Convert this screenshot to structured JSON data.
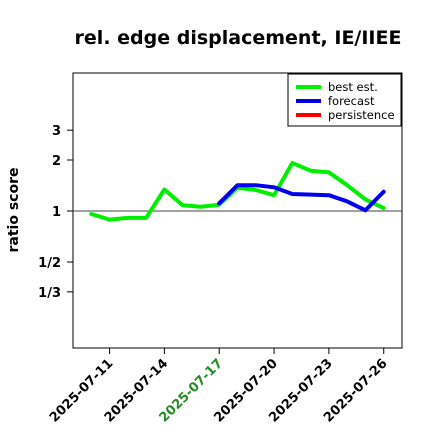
{
  "chart_data": {
    "type": "line",
    "title": "rel. edge displacement, IE/IIEE",
    "ylabel": "ratio score",
    "y_scale": "log",
    "y_ticks": [
      {
        "value": 3,
        "label": "3"
      },
      {
        "value": 2,
        "label": "2"
      },
      {
        "value": 1,
        "label": "1"
      },
      {
        "value": 0.5,
        "label": "1/2"
      },
      {
        "value": 0.3333,
        "label": "1/3"
      }
    ],
    "x_ticks": [
      {
        "date": "2025-07-11",
        "label": "2025-07-11",
        "color": "#000000"
      },
      {
        "date": "2025-07-14",
        "label": "2025-07-14",
        "color": "#000000"
      },
      {
        "date": "2025-07-17",
        "label": "2025-07-17",
        "color": "#228b22"
      },
      {
        "date": "2025-07-20",
        "label": "2025-07-20",
        "color": "#000000"
      },
      {
        "date": "2025-07-23",
        "label": "2025-07-23",
        "color": "#000000"
      },
      {
        "date": "2025-07-26",
        "label": "2025-07-26",
        "color": "#000000"
      }
    ],
    "xlim": [
      "2025-07-09",
      "2025-07-27"
    ],
    "reference_line": 1,
    "legend_position": "top-right",
    "series": [
      {
        "name": "best est.",
        "color": "#00ee00",
        "x": [
          "2025-07-10",
          "2025-07-11",
          "2025-07-12",
          "2025-07-13",
          "2025-07-14",
          "2025-07-15",
          "2025-07-16",
          "2025-07-17",
          "2025-07-18",
          "2025-07-19",
          "2025-07-20",
          "2025-07-21",
          "2025-07-22",
          "2025-07-23",
          "2025-07-24",
          "2025-07-25",
          "2025-07-26"
        ],
        "values": [
          0.96,
          0.89,
          0.91,
          0.91,
          1.34,
          1.08,
          1.06,
          1.09,
          1.37,
          1.33,
          1.24,
          1.92,
          1.73,
          1.69,
          1.42,
          1.17,
          1.04
        ]
      },
      {
        "name": "forecast",
        "color": "#0000ee",
        "x": [
          "2025-07-17",
          "2025-07-18",
          "2025-07-19",
          "2025-07-20",
          "2025-07-21",
          "2025-07-22",
          "2025-07-23",
          "2025-07-24",
          "2025-07-25",
          "2025-07-26"
        ],
        "values": [
          1.11,
          1.42,
          1.42,
          1.38,
          1.26,
          1.25,
          1.24,
          1.14,
          1.01,
          1.3
        ]
      },
      {
        "name": "persistence",
        "color": "#ff0000",
        "x": [],
        "values": []
      }
    ]
  }
}
